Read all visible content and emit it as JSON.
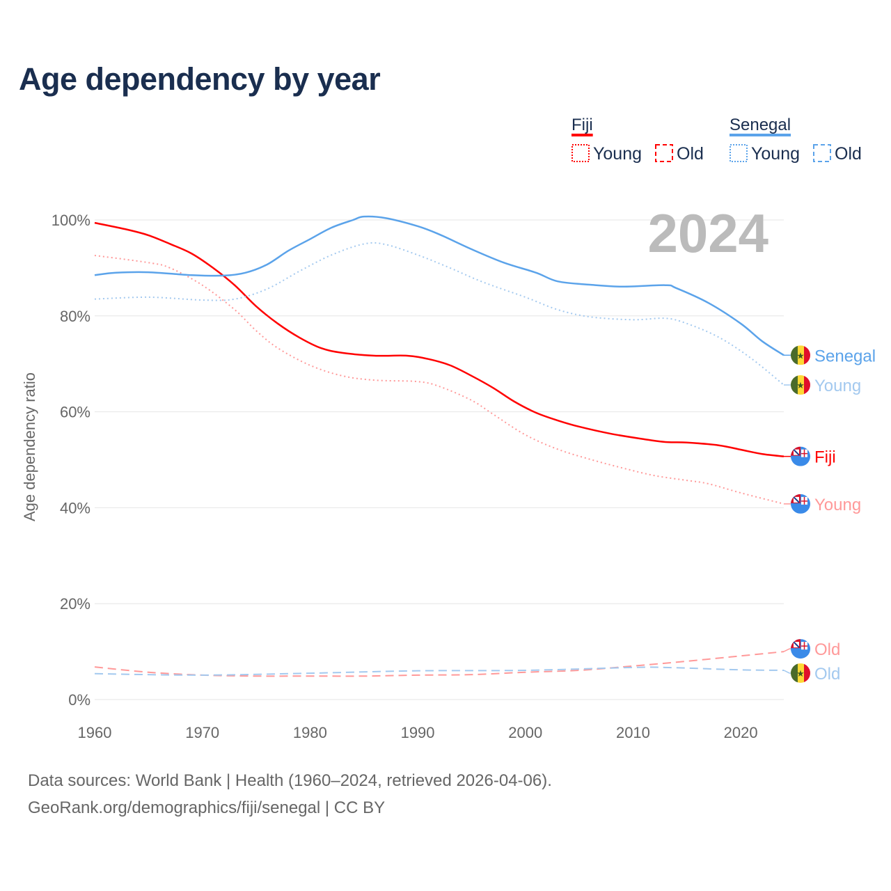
{
  "title": "Age dependency by year",
  "year_badge": "2024",
  "sources": {
    "line1": "Data sources: World Bank | Health (1960–2024, retrieved 2026-04-06).",
    "line2": "GeoRank.org/demographics/fiji/senegal | CC BY"
  },
  "legend": {
    "groups": [
      {
        "name": "Fiji",
        "color": "#ff0000",
        "items": [
          "Young",
          "Old"
        ]
      },
      {
        "name": "Senegal",
        "color": "#5ba3ea",
        "items": [
          "Young",
          "Old"
        ]
      }
    ]
  },
  "chart_data": {
    "type": "line",
    "title": "Age dependency by year",
    "xlabel": "",
    "ylabel": "Age dependency ratio",
    "xlim": [
      1960,
      2024
    ],
    "ylim": [
      0,
      100
    ],
    "x_ticks": [
      "1960",
      "1970",
      "1980",
      "1990",
      "2000",
      "2010",
      "2020"
    ],
    "y_ticks": [
      "0%",
      "20%",
      "40%",
      "60%",
      "80%",
      "100%"
    ],
    "grid": true,
    "series": [
      {
        "name": "Fiji",
        "label": "Fiji",
        "country": "Fiji",
        "style": "solid",
        "color": "#ff0000",
        "points": [
          [
            1960,
            99.4
          ],
          [
            1963,
            98
          ],
          [
            1965,
            96.8
          ],
          [
            1967,
            95
          ],
          [
            1969,
            93
          ],
          [
            1971,
            90
          ],
          [
            1973,
            86.4
          ],
          [
            1975,
            82
          ],
          [
            1977,
            78.4
          ],
          [
            1979,
            75.5
          ],
          [
            1981,
            73.3
          ],
          [
            1983,
            72.3
          ],
          [
            1986,
            71.7
          ],
          [
            1989,
            71.7
          ],
          [
            1991,
            71
          ],
          [
            1993,
            69.7
          ],
          [
            1995,
            67.5
          ],
          [
            1997,
            65
          ],
          [
            1999,
            62.1
          ],
          [
            2001,
            59.8
          ],
          [
            2003,
            58.2
          ],
          [
            2005,
            56.9
          ],
          [
            2008,
            55.4
          ],
          [
            2011,
            54.3
          ],
          [
            2013,
            53.7
          ],
          [
            2015,
            53.6
          ],
          [
            2018,
            53
          ],
          [
            2020,
            52.1
          ],
          [
            2022,
            51.2
          ],
          [
            2024,
            50.7
          ]
        ]
      },
      {
        "name": "Fiji Young",
        "label": "Young",
        "country": "Fiji",
        "style": "dotted",
        "color": "#ff9999",
        "points": [
          [
            1960,
            92.6
          ],
          [
            1965,
            91.1
          ],
          [
            1967,
            90
          ],
          [
            1970,
            86.4
          ],
          [
            1973,
            81.3
          ],
          [
            1975,
            76.9
          ],
          [
            1977,
            73.3
          ],
          [
            1980,
            69.7
          ],
          [
            1983,
            67.5
          ],
          [
            1986,
            66.6
          ],
          [
            1990,
            66.3
          ],
          [
            1992,
            65.3
          ],
          [
            1995,
            62.4
          ],
          [
            1997,
            59.5
          ],
          [
            2000,
            55.2
          ],
          [
            2003,
            52.2
          ],
          [
            2006,
            50.1
          ],
          [
            2009,
            48.3
          ],
          [
            2012,
            46.7
          ],
          [
            2015,
            45.7
          ],
          [
            2017,
            45
          ],
          [
            2020,
            43.1
          ],
          [
            2024,
            40.8
          ]
        ]
      },
      {
        "name": "Fiji Old",
        "label": "Old",
        "country": "Fiji",
        "style": "dashed",
        "color": "#ff9999",
        "points": [
          [
            1960,
            6.8
          ],
          [
            1965,
            5.7
          ],
          [
            1970,
            5.1
          ],
          [
            1975,
            4.9
          ],
          [
            1980,
            4.9
          ],
          [
            1985,
            4.9
          ],
          [
            1990,
            5.1
          ],
          [
            1995,
            5.2
          ],
          [
            2000,
            5.7
          ],
          [
            2005,
            6.1
          ],
          [
            2010,
            7
          ],
          [
            2015,
            8
          ],
          [
            2020,
            9.1
          ],
          [
            2024,
            10
          ]
        ]
      },
      {
        "name": "Senegal",
        "label": "Senegal",
        "country": "Senegal",
        "style": "solid",
        "color": "#5ba3ea",
        "points": [
          [
            1960,
            88.5
          ],
          [
            1962,
            89
          ],
          [
            1965,
            89.1
          ],
          [
            1969,
            88.5
          ],
          [
            1972,
            88.4
          ],
          [
            1974,
            89
          ],
          [
            1976,
            90.7
          ],
          [
            1978,
            93.6
          ],
          [
            1980,
            96
          ],
          [
            1982,
            98.4
          ],
          [
            1984,
            100
          ],
          [
            1985,
            100.7
          ],
          [
            1987,
            100.4
          ],
          [
            1990,
            98.7
          ],
          [
            1992,
            97
          ],
          [
            1995,
            93.9
          ],
          [
            1998,
            91.1
          ],
          [
            2001,
            89
          ],
          [
            2003,
            87.2
          ],
          [
            2006,
            86.5
          ],
          [
            2009,
            86.1
          ],
          [
            2013,
            86.4
          ],
          [
            2014,
            85.8
          ],
          [
            2017,
            82.7
          ],
          [
            2020,
            78.4
          ],
          [
            2022,
            74.7
          ],
          [
            2024,
            71.8
          ]
        ]
      },
      {
        "name": "Senegal Young",
        "label": "Young",
        "country": "Senegal",
        "style": "dotted",
        "color": "#a3c9ef",
        "points": [
          [
            1960,
            83.5
          ],
          [
            1965,
            83.9
          ],
          [
            1970,
            83.3
          ],
          [
            1973,
            83.5
          ],
          [
            1976,
            85.6
          ],
          [
            1979,
            89.3
          ],
          [
            1982,
            92.7
          ],
          [
            1985,
            95
          ],
          [
            1987,
            94.9
          ],
          [
            1990,
            92.7
          ],
          [
            1993,
            90
          ],
          [
            1996,
            87.1
          ],
          [
            2000,
            83.9
          ],
          [
            2003,
            81.3
          ],
          [
            2006,
            79.8
          ],
          [
            2010,
            79.2
          ],
          [
            2013,
            79.5
          ],
          [
            2015,
            78.4
          ],
          [
            2018,
            75.5
          ],
          [
            2021,
            71.1
          ],
          [
            2024,
            65.6
          ]
        ]
      },
      {
        "name": "Senegal Old",
        "label": "Old",
        "country": "Senegal",
        "style": "dashed",
        "color": "#a3c9ef",
        "points": [
          [
            1960,
            5.4
          ],
          [
            1970,
            5.1
          ],
          [
            1980,
            5.5
          ],
          [
            1990,
            6
          ],
          [
            2000,
            6.1
          ],
          [
            2010,
            6.7
          ],
          [
            2013,
            6.7
          ],
          [
            2020,
            6.2
          ],
          [
            2024,
            6.1
          ]
        ]
      }
    ]
  }
}
